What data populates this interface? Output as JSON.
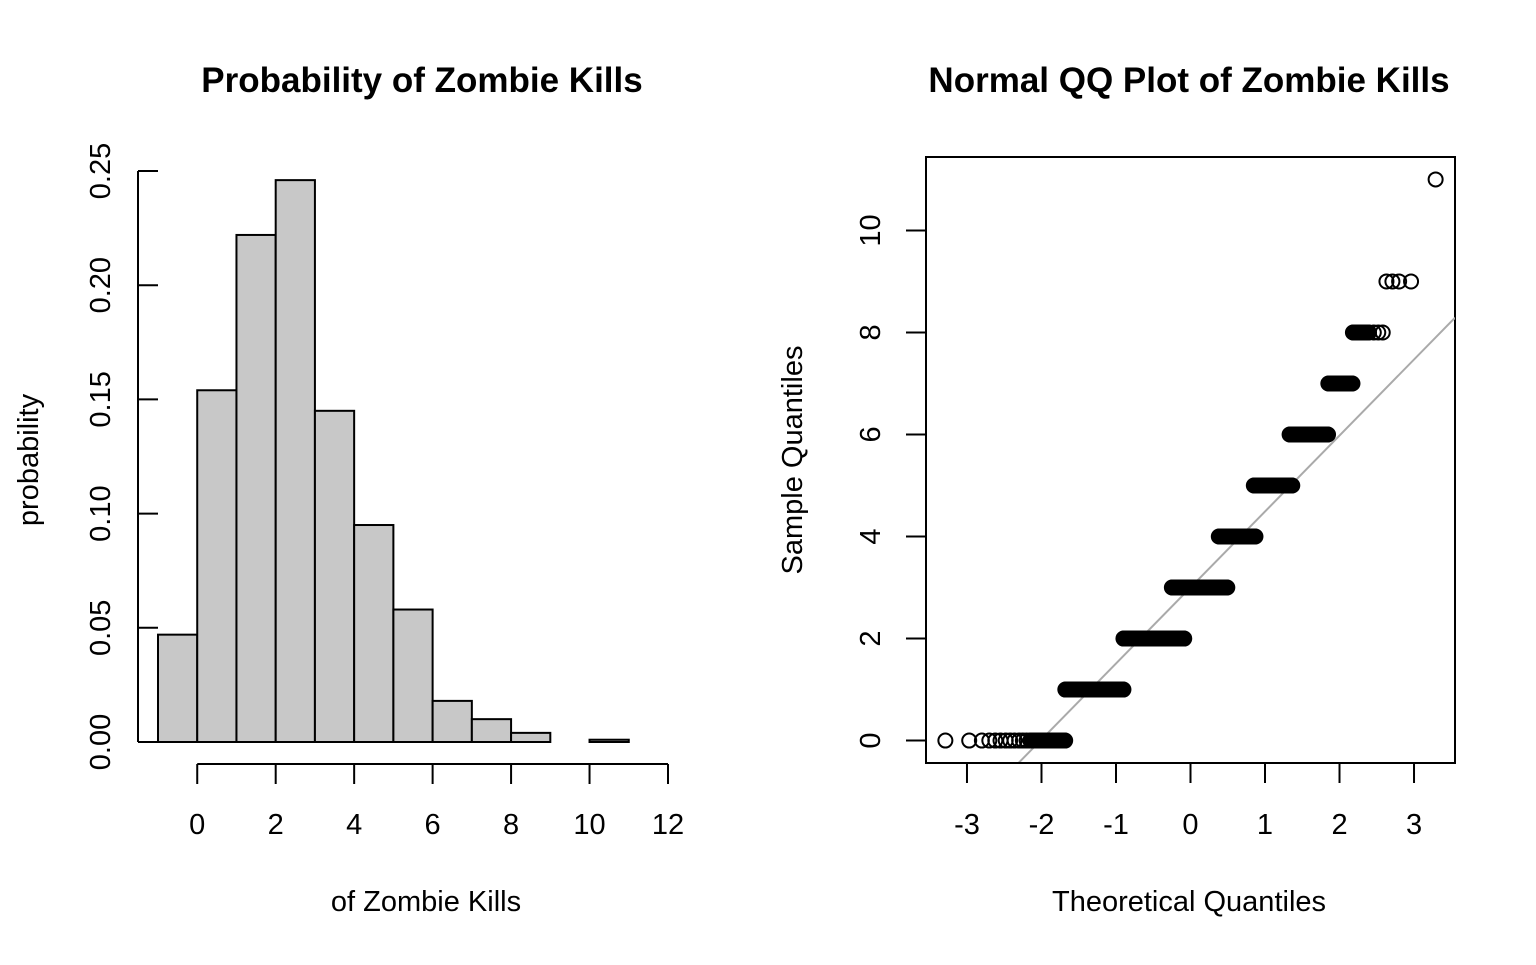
{
  "colors": {
    "bar_fill": "#c8c8c8",
    "stroke": "#000000",
    "qq_line": "#aaaaaa",
    "background": "#ffffff"
  },
  "chart_data": [
    {
      "type": "bar",
      "subtype": "histogram",
      "title": "Probability of Zombie Kills",
      "xlabel": "of Zombie Kills",
      "ylabel": "probability",
      "bin_edges": [
        -1,
        0,
        1,
        2,
        3,
        4,
        5,
        6,
        7,
        8,
        9,
        10,
        11
      ],
      "values": [
        0.047,
        0.154,
        0.222,
        0.246,
        0.145,
        0.095,
        0.058,
        0.018,
        0.01,
        0.004,
        0.0,
        0.001
      ],
      "xlim": [
        -1,
        12
      ],
      "ylim": [
        0,
        0.25
      ],
      "x_ticks": [
        0,
        2,
        4,
        6,
        8,
        10,
        12
      ],
      "x_tick_labels": [
        "0",
        "2",
        "4",
        "6",
        "8",
        "10",
        "12"
      ],
      "y_ticks": [
        0,
        0.05,
        0.1,
        0.15,
        0.2,
        0.25
      ],
      "y_tick_labels": [
        "0.00",
        "0.05",
        "0.10",
        "0.15",
        "0.20",
        "0.25"
      ],
      "grid": false
    },
    {
      "type": "scatter",
      "subtype": "normal-qq",
      "title": "Normal QQ Plot of Zombie Kills",
      "xlabel": "Theoretical Quantiles",
      "ylabel": "Sample Quantiles",
      "xlim": [
        -3.55,
        3.55
      ],
      "ylim": [
        -0.44,
        11.44
      ],
      "x_ticks": [
        -3,
        -2,
        -1,
        0,
        1,
        2,
        3
      ],
      "x_tick_labels": [
        "-3",
        "-2",
        "-1",
        "0",
        "1",
        "2",
        "3"
      ],
      "y_ticks": [
        0,
        2,
        4,
        6,
        8,
        10
      ],
      "y_tick_labels": [
        "0",
        "2",
        "4",
        "6",
        "8",
        "10"
      ],
      "groups": [
        {
          "y": 0,
          "x_from": -2.15,
          "x_to": -1.68,
          "isolated_x": [
            -3.29,
            -2.97,
            -2.8,
            -2.7,
            -2.62,
            -2.55,
            -2.48,
            -2.42,
            -2.36,
            -2.3,
            -2.25,
            -2.2
          ]
        },
        {
          "y": 1,
          "x_from": -1.68,
          "x_to": -0.9,
          "isolated_x": []
        },
        {
          "y": 2,
          "x_from": -0.9,
          "x_to": -0.08,
          "isolated_x": []
        },
        {
          "y": 3,
          "x_from": -0.25,
          "x_to": 0.5,
          "isolated_x": []
        },
        {
          "y": 4,
          "x_from": 0.38,
          "x_to": 0.88,
          "isolated_x": []
        },
        {
          "y": 5,
          "x_from": 0.85,
          "x_to": 1.37,
          "isolated_x": []
        },
        {
          "y": 6,
          "x_from": 1.33,
          "x_to": 1.85,
          "isolated_x": []
        },
        {
          "y": 7,
          "x_from": 1.85,
          "x_to": 2.18,
          "isolated_x": []
        },
        {
          "y": 8,
          "x_from": 2.18,
          "x_to": 2.4,
          "isolated_x": [
            2.46,
            2.52,
            2.58
          ]
        },
        {
          "y": 9,
          "x_from": null,
          "x_to": null,
          "isolated_x": [
            2.63,
            2.71,
            2.8,
            2.96
          ]
        },
        {
          "y": 10,
          "x_from": null,
          "x_to": null,
          "isolated_x": []
        },
        {
          "y": 11,
          "x_from": null,
          "x_to": null,
          "isolated_x": [
            3.29
          ]
        }
      ],
      "reference_line": {
        "intercept": 3.0,
        "slope": 1.49
      },
      "grid": false
    }
  ]
}
